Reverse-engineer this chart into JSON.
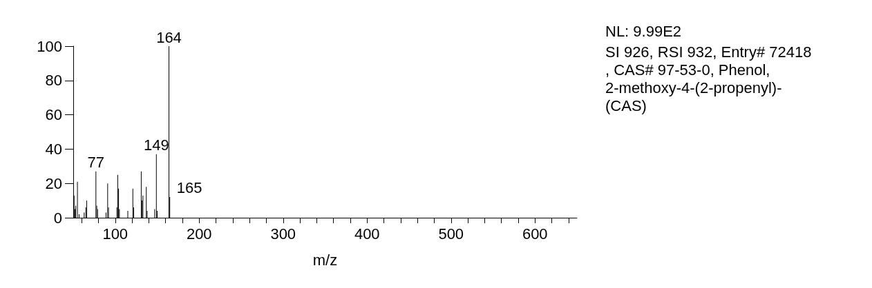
{
  "chart_data": {
    "type": "bar",
    "xlabel": "m/z",
    "color": "#000000",
    "x": [
      51,
      52,
      53,
      55,
      57,
      63,
      65,
      66,
      77,
      78,
      79,
      89,
      91,
      92,
      102,
      103,
      104,
      105,
      115,
      121,
      122,
      131,
      132,
      133,
      137,
      138,
      147,
      149,
      150,
      164,
      165
    ],
    "values": [
      13,
      5,
      7,
      21,
      2,
      3,
      6,
      10,
      27,
      7,
      5,
      3,
      20,
      6,
      6,
      25,
      17,
      5,
      4,
      17,
      6,
      27,
      10,
      13,
      18,
      4,
      5,
      37,
      4,
      100,
      12
    ],
    "xlim": [
      50,
      650
    ],
    "xticks": [
      {
        "value": 60,
        "label": null
      },
      {
        "value": 80,
        "label": null
      },
      100,
      {
        "value": 120,
        "label": null
      },
      {
        "value": 140,
        "label": null
      },
      {
        "value": 160,
        "label": null
      },
      {
        "value": 180,
        "label": null
      },
      200,
      {
        "value": 220,
        "label": null
      },
      {
        "value": 240,
        "label": null
      },
      {
        "value": 260,
        "label": null
      },
      {
        "value": 280,
        "label": null
      },
      300,
      {
        "value": 320,
        "label": null
      },
      {
        "value": 340,
        "label": null
      },
      {
        "value": 360,
        "label": null
      },
      {
        "value": 380,
        "label": null
      },
      400,
      {
        "value": 420,
        "label": null
      },
      {
        "value": 440,
        "label": null
      },
      {
        "value": 460,
        "label": null
      },
      {
        "value": 480,
        "label": null
      },
      500,
      {
        "value": 520,
        "label": null
      },
      {
        "value": 540,
        "label": null
      },
      {
        "value": 560,
        "label": null
      },
      {
        "value": 580,
        "label": null
      },
      600,
      {
        "value": 620,
        "label": null
      },
      {
        "value": 640,
        "label": null
      }
    ],
    "ylim": [
      0,
      100
    ],
    "yticks": [
      0,
      20,
      40,
      60,
      80,
      100
    ],
    "grid": false,
    "annotations": [
      {
        "text": "77",
        "x": 77,
        "y": 27
      },
      {
        "text": "149",
        "x": 149,
        "y": 37
      },
      {
        "text": "164",
        "x": 164,
        "y": 100
      },
      {
        "text": "165",
        "x": 165,
        "y": 12
      },
      "NL: 9.99E2",
      "SI 926, RSI 932, Entry# 72418, CAS# 97-53-0, Phenol, 2-methoxy-4-(2-propenyl)- (CAS)"
    ]
  }
}
